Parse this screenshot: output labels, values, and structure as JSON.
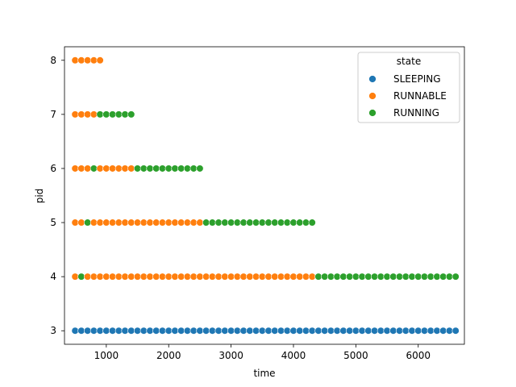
{
  "chart_data": {
    "type": "scatter",
    "xlabel": "time",
    "ylabel": "pid",
    "xlim": [
      330,
      6740
    ],
    "ylim": [
      2.75,
      8.25
    ],
    "xticks": [
      1000,
      2000,
      3000,
      4000,
      5000,
      6000
    ],
    "yticks": [
      3,
      4,
      5,
      6,
      7,
      8
    ],
    "legend": {
      "title": "state",
      "placement": "top-right",
      "entries": [
        "SLEEPING",
        "RUNNABLE",
        "RUNNING"
      ]
    },
    "colors": {
      "SLEEPING": "#1f77b4",
      "RUNNABLE": "#ff7f0e",
      "RUNNING": "#2ca02c"
    },
    "time_start": 500,
    "time_step": 100,
    "series": [
      {
        "pid": 3,
        "segments": [
          {
            "state": "SLEEPING",
            "from": 500,
            "to": 6600
          }
        ]
      },
      {
        "pid": 4,
        "segments": [
          {
            "state": "RUNNABLE",
            "from": 500,
            "to": 500
          },
          {
            "state": "RUNNING",
            "from": 600,
            "to": 600
          },
          {
            "state": "RUNNABLE",
            "from": 700,
            "to": 4300
          },
          {
            "state": "RUNNING",
            "from": 4400,
            "to": 6600
          }
        ]
      },
      {
        "pid": 5,
        "segments": [
          {
            "state": "RUNNABLE",
            "from": 500,
            "to": 600
          },
          {
            "state": "RUNNING",
            "from": 700,
            "to": 700
          },
          {
            "state": "RUNNABLE",
            "from": 800,
            "to": 2500
          },
          {
            "state": "RUNNING",
            "from": 2600,
            "to": 4300
          }
        ]
      },
      {
        "pid": 6,
        "segments": [
          {
            "state": "RUNNABLE",
            "from": 500,
            "to": 700
          },
          {
            "state": "RUNNING",
            "from": 800,
            "to": 800
          },
          {
            "state": "RUNNABLE",
            "from": 900,
            "to": 1400
          },
          {
            "state": "RUNNING",
            "from": 1500,
            "to": 2500
          }
        ]
      },
      {
        "pid": 7,
        "segments": [
          {
            "state": "RUNNABLE",
            "from": 500,
            "to": 800
          },
          {
            "state": "RUNNING",
            "from": 900,
            "to": 1400
          }
        ]
      },
      {
        "pid": 8,
        "segments": [
          {
            "state": "RUNNABLE",
            "from": 500,
            "to": 900
          }
        ]
      }
    ]
  }
}
